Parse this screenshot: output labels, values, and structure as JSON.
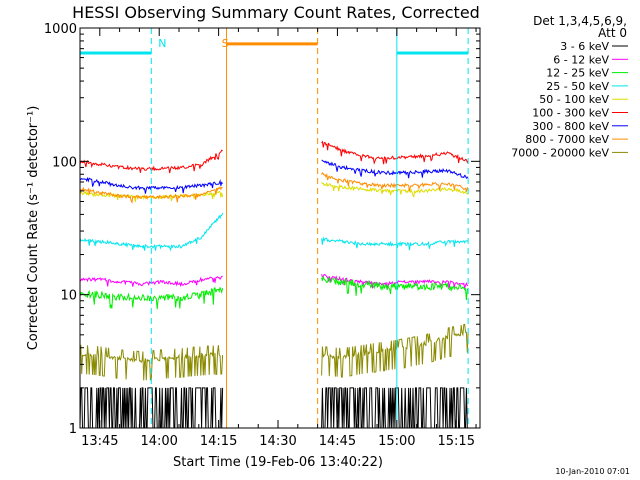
{
  "chart_data": {
    "type": "line",
    "title": "HESSI Observing Summary Count Rates, Corrected",
    "xlabel": "Start Time (19-Feb-06 13:40:22)",
    "ylabel": "Corrected Count Rate (s⁻¹ detector⁻¹)",
    "yscale": "log",
    "ylim": [
      1,
      1000
    ],
    "xlim": [
      "13:40",
      "15:21"
    ],
    "x_ticks": [
      "13:45",
      "14:00",
      "14:15",
      "14:30",
      "14:45",
      "15:00",
      "15:15"
    ],
    "y_ticks": [
      "1",
      "10",
      "100",
      "1000"
    ],
    "legend_position": "top-right",
    "legend_header": [
      "Det 1,3,4,5,6,9,",
      "Att 0"
    ],
    "footer": "10-Jan-2010 07:01",
    "annotations": [
      {
        "text": "N",
        "time": "13:59",
        "color": "#00e5ee"
      },
      {
        "text": "S",
        "time": "14:15",
        "color": "#ff8c00"
      }
    ],
    "intervals": [
      {
        "name": "night",
        "start": "13:40",
        "end": "13:58",
        "color": "#00e5ee",
        "level": 650
      },
      {
        "name": "saa",
        "start": "14:17",
        "end": "14:40",
        "color": "#ff8c00",
        "level": 760
      },
      {
        "name": "night",
        "start": "15:00",
        "end": "15:18",
        "color": "#00e5ee",
        "level": 650
      }
    ],
    "vertical_markers": [
      {
        "time": "13:40",
        "color": "#00e5ee",
        "style": "solid"
      },
      {
        "time": "13:58",
        "color": "#00e5ee",
        "style": "dashed"
      },
      {
        "time": "14:17",
        "color": "#ff8c00",
        "style": "solid"
      },
      {
        "time": "14:40",
        "color": "#ff8c00",
        "style": "dashed"
      },
      {
        "time": "15:00",
        "color": "#00e5ee",
        "style": "solid"
      },
      {
        "time": "15:18",
        "color": "#00e5ee",
        "style": "dashed"
      }
    ],
    "segments": [
      {
        "start": "13:40",
        "end": "14:16"
      },
      {
        "start": "14:41",
        "end": "15:18"
      }
    ],
    "series": [
      {
        "name": "3 - 6 keV",
        "color": "#000000",
        "values": [
          [
            1.6,
            1.6,
            1.5,
            1.4,
            1.5,
            1.4,
            1.5,
            1.6
          ],
          [
            1.6,
            1.6,
            1.5,
            1.5,
            1.6,
            1.6,
            1.7,
            1.6
          ]
        ]
      },
      {
        "name": "6 - 12 keV",
        "color": "#ff00ff",
        "values": [
          [
            13,
            13,
            12.5,
            12,
            12.5,
            12,
            13,
            13.5
          ],
          [
            14,
            13,
            12.5,
            12,
            12.5,
            12.5,
            12.5,
            12
          ]
        ]
      },
      {
        "name": "12 - 25 keV",
        "color": "#00ee00",
        "values": [
          [
            10,
            10,
            9.5,
            9.5,
            9.5,
            9.5,
            10,
            11
          ],
          [
            13,
            12.5,
            12,
            11.5,
            11.5,
            11.5,
            11.5,
            11
          ]
        ]
      },
      {
        "name": "25 - 50 keV",
        "color": "#00e5ee",
        "values": [
          [
            26,
            25,
            24,
            23,
            23,
            23,
            27,
            40
          ],
          [
            26,
            25,
            24,
            24,
            24,
            24,
            25,
            25
          ]
        ]
      },
      {
        "name": "50 - 100 keV",
        "color": "#dddd00",
        "values": [
          [
            58,
            56,
            55,
            54,
            54,
            55,
            56,
            60
          ],
          [
            68,
            64,
            62,
            60,
            60,
            60,
            62,
            58
          ]
        ]
      },
      {
        "name": "100 - 300 keV",
        "color": "#ff0000",
        "values": [
          [
            100,
            95,
            90,
            88,
            88,
            90,
            95,
            120
          ],
          [
            140,
            120,
            110,
            105,
            108,
            110,
            115,
            100
          ]
        ]
      },
      {
        "name": "300 - 800 keV",
        "color": "#0000ff",
        "values": [
          [
            75,
            70,
            65,
            63,
            63,
            64,
            66,
            70
          ],
          [
            100,
            90,
            85,
            82,
            82,
            84,
            85,
            75
          ]
        ]
      },
      {
        "name": "800 - 7000 keV",
        "color": "#ff8c00",
        "values": [
          [
            62,
            58,
            55,
            54,
            54,
            55,
            56,
            64
          ],
          [
            80,
            72,
            68,
            66,
            66,
            67,
            68,
            62
          ]
        ]
      },
      {
        "name": "7000 - 20000 keV",
        "color": "#8b8b00",
        "values": [
          [
            3.6,
            3.5,
            3.3,
            3.2,
            3.3,
            3.4,
            3.5,
            3.6
          ],
          [
            3.5,
            3.4,
            3.6,
            3.8,
            4.0,
            4.3,
            4.8,
            5.2
          ]
        ]
      }
    ]
  }
}
